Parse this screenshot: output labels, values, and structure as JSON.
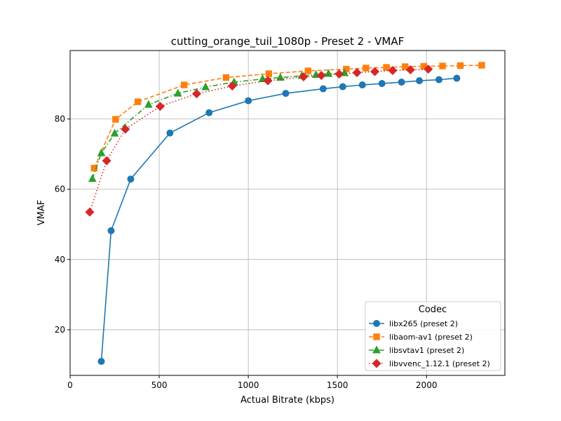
{
  "chart_data": {
    "type": "line",
    "title": "cutting_orange_tuil_1080p - Preset 2 - VMAF",
    "xlabel": "Actual Bitrate (kbps)",
    "ylabel": "VMAF",
    "xlim": [
      0,
      2440
    ],
    "ylim": [
      7,
      99.5
    ],
    "xticks": [
      0,
      500,
      1000,
      1500,
      2000
    ],
    "yticks": [
      20,
      40,
      60,
      80
    ],
    "grid": true,
    "legend": {
      "title": "Codec",
      "placement": "lower-right"
    },
    "series": [
      {
        "name": "libx265 (preset 2)",
        "color": "#1f77b4",
        "marker": "circle",
        "linestyle": "solid",
        "x": [
          175,
          230,
          340,
          560,
          780,
          1000,
          1210,
          1420,
          1530,
          1640,
          1750,
          1860,
          1960,
          2070,
          2170
        ],
        "y": [
          11,
          48.2,
          62.9,
          76,
          81.8,
          85.2,
          87.3,
          88.6,
          89.2,
          89.7,
          90.1,
          90.5,
          90.9,
          91.2,
          91.6
        ]
      },
      {
        "name": "libaom-av1 (preset 2)",
        "color": "#ff7f0e",
        "marker": "square",
        "linestyle": "dashed",
        "x": [
          135,
          255,
          380,
          640,
          875,
          1115,
          1335,
          1550,
          1660,
          1775,
          1880,
          1985,
          2090,
          2190,
          2310
        ],
        "y": [
          66,
          79.9,
          84.9,
          89.7,
          91.8,
          92.9,
          93.7,
          94.2,
          94.5,
          94.7,
          94.9,
          95,
          95.1,
          95.2,
          95.3
        ]
      },
      {
        "name": "libsvtav1 (preset 2)",
        "color": "#2ca02c",
        "marker": "triangle",
        "linestyle": "dashdot",
        "x": [
          125,
          175,
          250,
          440,
          605,
          760,
          920,
          1080,
          1180,
          1300,
          1380,
          1450,
          1540
        ],
        "y": [
          63,
          70.3,
          75.9,
          84.1,
          87.3,
          89.1,
          90.5,
          91.4,
          91.8,
          92.3,
          92.6,
          92.9,
          93.1
        ]
      },
      {
        "name": "libvvenc_1.12.1 (preset 2)",
        "color": "#d62728",
        "marker": "diamond",
        "linestyle": "dotted",
        "x": [
          110,
          205,
          310,
          505,
          710,
          910,
          1110,
          1310,
          1410,
          1510,
          1610,
          1710,
          1810,
          1910,
          2010
        ],
        "y": [
          53.5,
          68.1,
          77.1,
          83.6,
          87.2,
          89.4,
          90.9,
          92,
          92.4,
          92.8,
          93.2,
          93.5,
          93.8,
          94,
          94.2
        ]
      }
    ]
  }
}
